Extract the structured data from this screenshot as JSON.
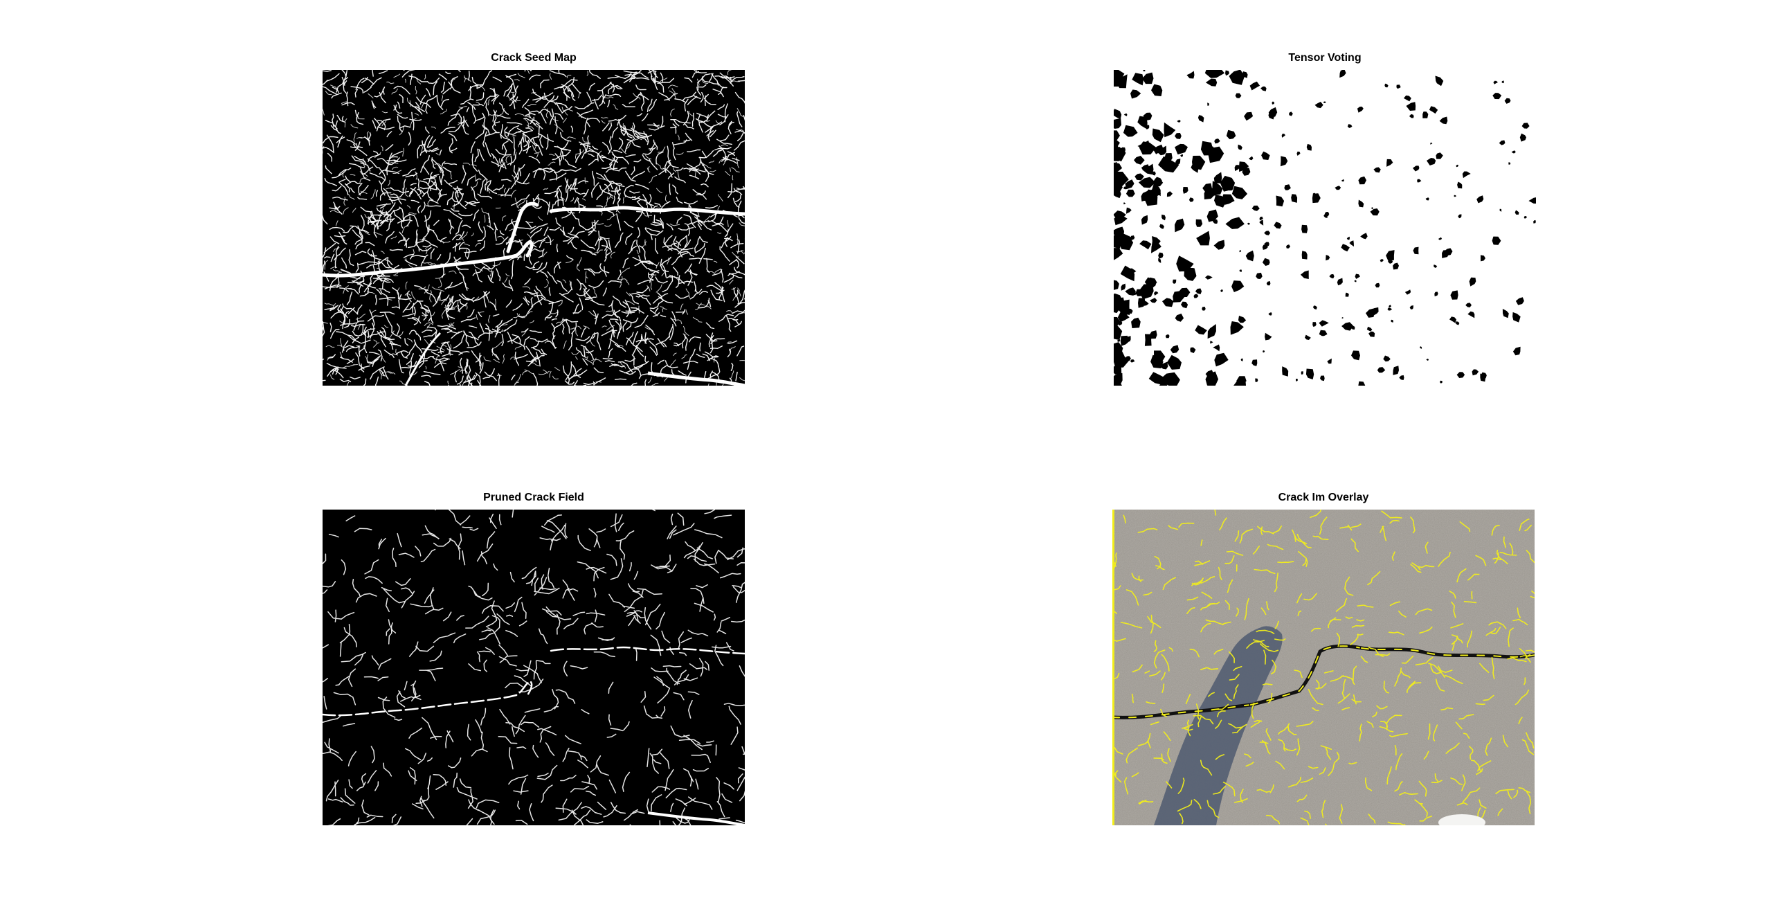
{
  "figure": {
    "panels": [
      {
        "title": "Crack Seed Map",
        "kind": "binary-noise-dark"
      },
      {
        "title": "Tensor Voting",
        "kind": "binary-blobs-light"
      },
      {
        "title": "Pruned Crack Field",
        "kind": "binary-sparse-dark"
      },
      {
        "title": "Crack Im Overlay",
        "kind": "photo-overlay"
      }
    ]
  },
  "colors": {
    "background": "#ffffff",
    "binary_foreground": "#ffffff",
    "binary_background": "#000000",
    "asphalt": "#9a968f",
    "shadow": "#4f5a70",
    "overlay_highlight": "#f2ee1a",
    "crack": "#111111"
  }
}
